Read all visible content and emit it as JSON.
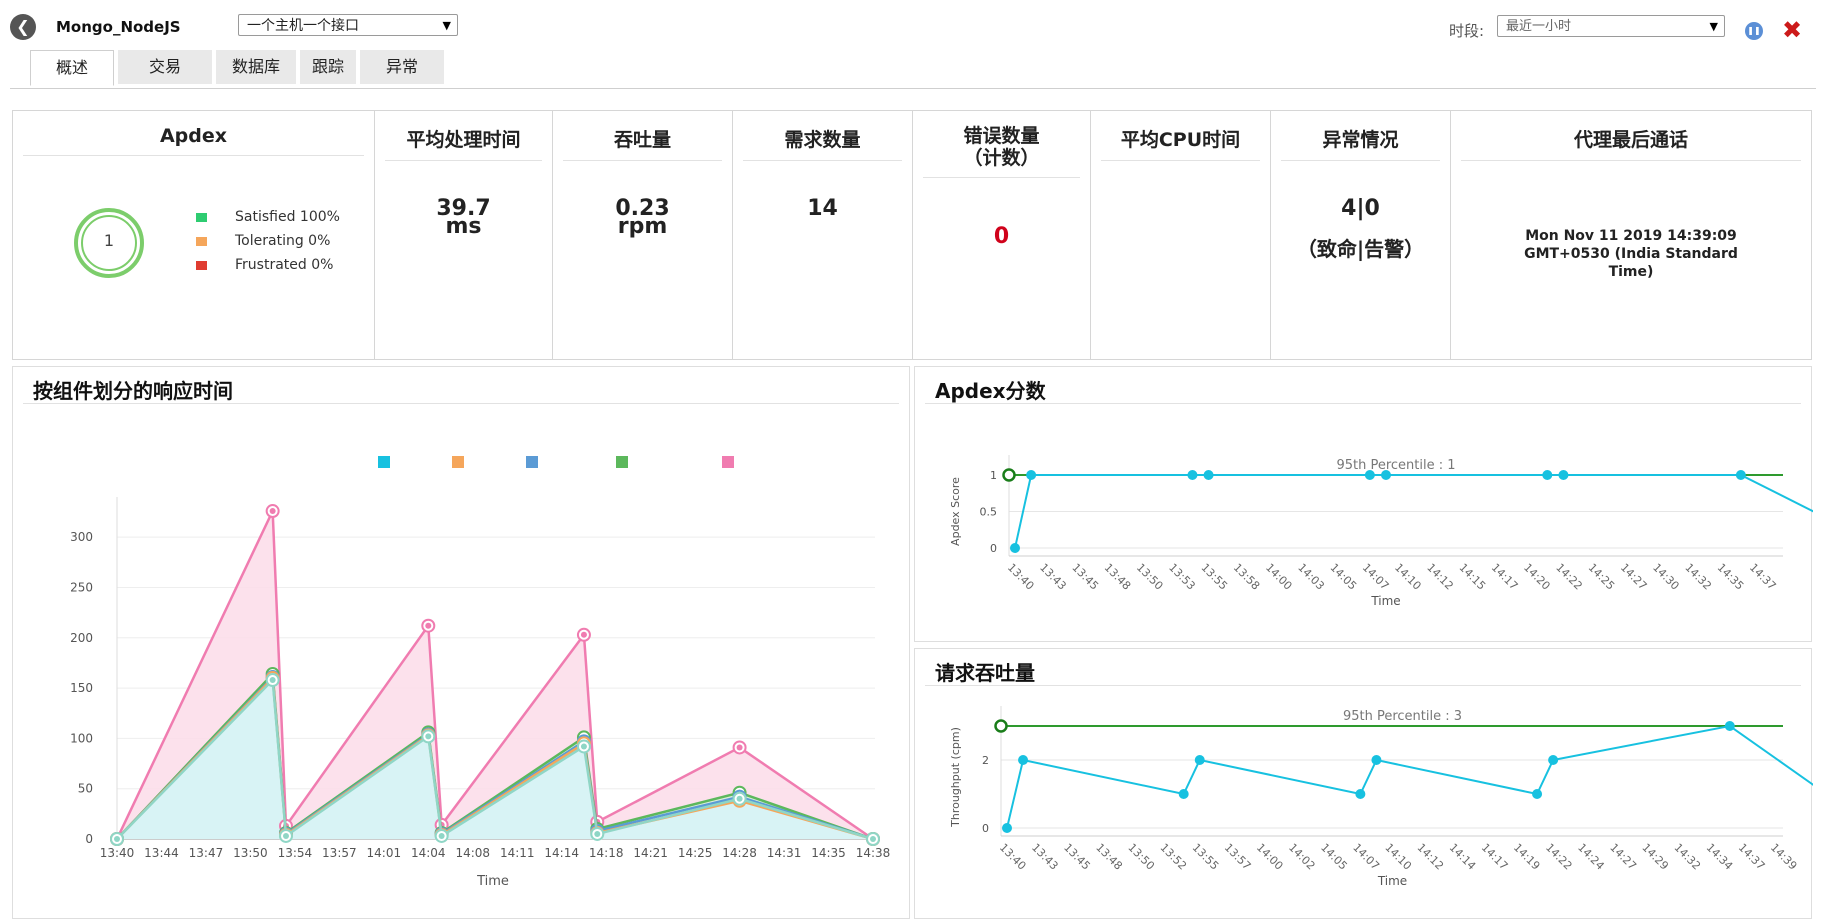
{
  "header": {
    "app_name": "Mongo_NodeJS",
    "view_select": "一个主机一个接口",
    "period_label": "时段:",
    "period_select": "最近一小时"
  },
  "tabs": [
    {
      "label": "概述",
      "active": true
    },
    {
      "label": "交易"
    },
    {
      "label": "数据库"
    },
    {
      "label": "跟踪"
    },
    {
      "label": "异常"
    }
  ],
  "summary": {
    "apdex": {
      "title": "Apdex",
      "score": "1",
      "legend": [
        {
          "label": "Satisfied 100%",
          "color": "#2ecc71"
        },
        {
          "label": "Tolerating 0%",
          "color": "#f5a65b"
        },
        {
          "label": "Frustrated 0%",
          "color": "#e03c31"
        }
      ]
    },
    "avg_time": {
      "title": "平均处理时间",
      "value": "39.7",
      "unit": "ms"
    },
    "throughput": {
      "title": "吞吐量",
      "value": "0.23",
      "unit": "rpm"
    },
    "requests": {
      "title": "需求数量",
      "value": "14"
    },
    "errors": {
      "title_line1": "错误数量",
      "title_line2": "（计数）",
      "value": "0",
      "value_color": "#d0021b"
    },
    "cpu": {
      "title": "平均CPU时间"
    },
    "exceptions": {
      "title": "异常情况",
      "value": "4|0",
      "caption": "（致命|告警）"
    },
    "agent": {
      "title": "代理最后通话",
      "line1": "Mon Nov 11 2019 14:39:09",
      "line2": "GMT+0530 (India Standard",
      "line3": "Time)"
    }
  },
  "response_chart": {
    "title": "按组件划分的响应时间",
    "chart_data": {
      "type": "area",
      "xlabel": "Time",
      "ylim": [
        0,
        330
      ],
      "y_ticks": [
        0,
        50,
        100,
        150,
        200,
        250,
        300
      ],
      "x_ticks": [
        "13:40",
        "13:44",
        "13:47",
        "13:50",
        "13:54",
        "13:57",
        "14:01",
        "14:04",
        "14:08",
        "14:11",
        "14:14",
        "14:18",
        "14:21",
        "14:25",
        "14:28",
        "14:31",
        "14:35",
        "14:38"
      ],
      "x_index": [
        0,
        3.5,
        3.8,
        7,
        7.3,
        10.5,
        10.8,
        14,
        17
      ],
      "legend_colors": [
        "#17c1e0",
        "#f5a65b",
        "#5b9bd5",
        "#5cb85c",
        "#f07cb0"
      ],
      "series": [
        {
          "color": "#8fd6c6",
          "values": [
            0,
            158,
            3,
            102,
            3,
            92,
            5,
            40,
            0
          ]
        },
        {
          "color": "#f5a65b",
          "values": [
            0,
            160,
            4,
            103,
            4,
            95,
            6,
            38,
            0
          ]
        },
        {
          "color": "#5b9bd5",
          "values": [
            0,
            161,
            5,
            104,
            5,
            97,
            8,
            42,
            0
          ]
        },
        {
          "color": "#5cb85c",
          "values": [
            0,
            164,
            6,
            106,
            6,
            101,
            10,
            46,
            0
          ]
        },
        {
          "color": "#f07cb0",
          "values": [
            0,
            326,
            13,
            212,
            14,
            203,
            17,
            91,
            0
          ]
        }
      ]
    }
  },
  "apdex_chart": {
    "title": "Apdex分数",
    "chart_data": {
      "type": "line",
      "ylabel": "Apdex Score",
      "xlabel": "Time",
      "ylim": [
        0,
        1
      ],
      "y_ticks": [
        "0",
        "0.5",
        "1"
      ],
      "percentile_label": "95th Percentile : 1",
      "percentile_value": 1,
      "x_ticks": [
        "13:40",
        "13:43",
        "13:45",
        "13:48",
        "13:50",
        "13:53",
        "13:55",
        "13:58",
        "14:00",
        "14:03",
        "14:05",
        "14:07",
        "14:10",
        "14:12",
        "14:15",
        "14:17",
        "14:20",
        "14:22",
        "14:25",
        "14:27",
        "14:30",
        "14:32",
        "14:35",
        "14:37"
      ],
      "x_index": [
        0,
        0.5,
        5.5,
        6,
        11,
        11.5,
        16.5,
        17,
        22.5,
        27
      ],
      "values": [
        0,
        1,
        1,
        1,
        1,
        1,
        1,
        1,
        1,
        0
      ]
    }
  },
  "throughput_chart": {
    "title": "请求吞吐量",
    "chart_data": {
      "type": "line",
      "ylabel": "Throughput (cpm)",
      "xlabel": "Time",
      "ylim": [
        0,
        3
      ],
      "y_ticks": [
        "0",
        "2"
      ],
      "percentile_label": "95th Percentile : 3",
      "percentile_value": 3,
      "x_ticks": [
        "13:40",
        "13:43",
        "13:45",
        "13:48",
        "13:50",
        "13:52",
        "13:55",
        "13:57",
        "14:00",
        "14:02",
        "14:05",
        "14:07",
        "14:10",
        "14:12",
        "14:14",
        "14:17",
        "14:19",
        "14:22",
        "14:24",
        "14:27",
        "14:29",
        "14:32",
        "14:34",
        "14:37",
        "14:39"
      ],
      "x_index": [
        0,
        0.5,
        5.5,
        6,
        11,
        11.5,
        16.5,
        17,
        22.5,
        27
      ],
      "values": [
        0,
        2,
        1,
        2,
        1,
        2,
        1,
        2,
        3,
        0
      ]
    }
  }
}
